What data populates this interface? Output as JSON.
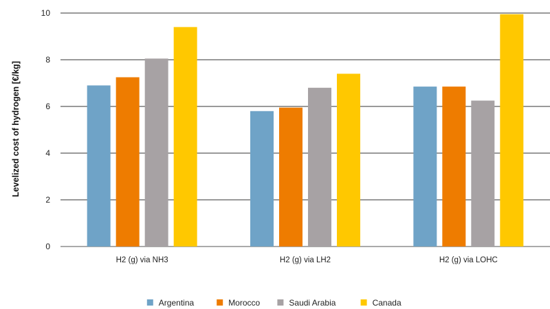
{
  "chart_data": {
    "type": "bar",
    "categories": [
      "H2 (g) via NH3",
      "H2 (g) via LH2",
      "H2 (g) via LOHC"
    ],
    "series": [
      {
        "name": "Argentina",
        "color": "#6fa3c7",
        "values": [
          6.9,
          5.8,
          6.85
        ]
      },
      {
        "name": "Morocco",
        "color": "#ee7c00",
        "values": [
          7.25,
          5.95,
          6.85
        ]
      },
      {
        "name": "Saudi Arabia",
        "color": "#a7a2a4",
        "values": [
          8.05,
          6.8,
          6.25
        ]
      },
      {
        "name": "Canada",
        "color": "#ffc800",
        "values": [
          9.4,
          7.4,
          9.95
        ]
      }
    ],
    "title": "",
    "xlabel": "",
    "ylabel": "Levelized cost of hydrogen [€/kg]",
    "ylim": [
      0,
      10
    ],
    "yticks": [
      0,
      2,
      4,
      6,
      8,
      10
    ],
    "grid": true,
    "legend_position": "bottom"
  }
}
